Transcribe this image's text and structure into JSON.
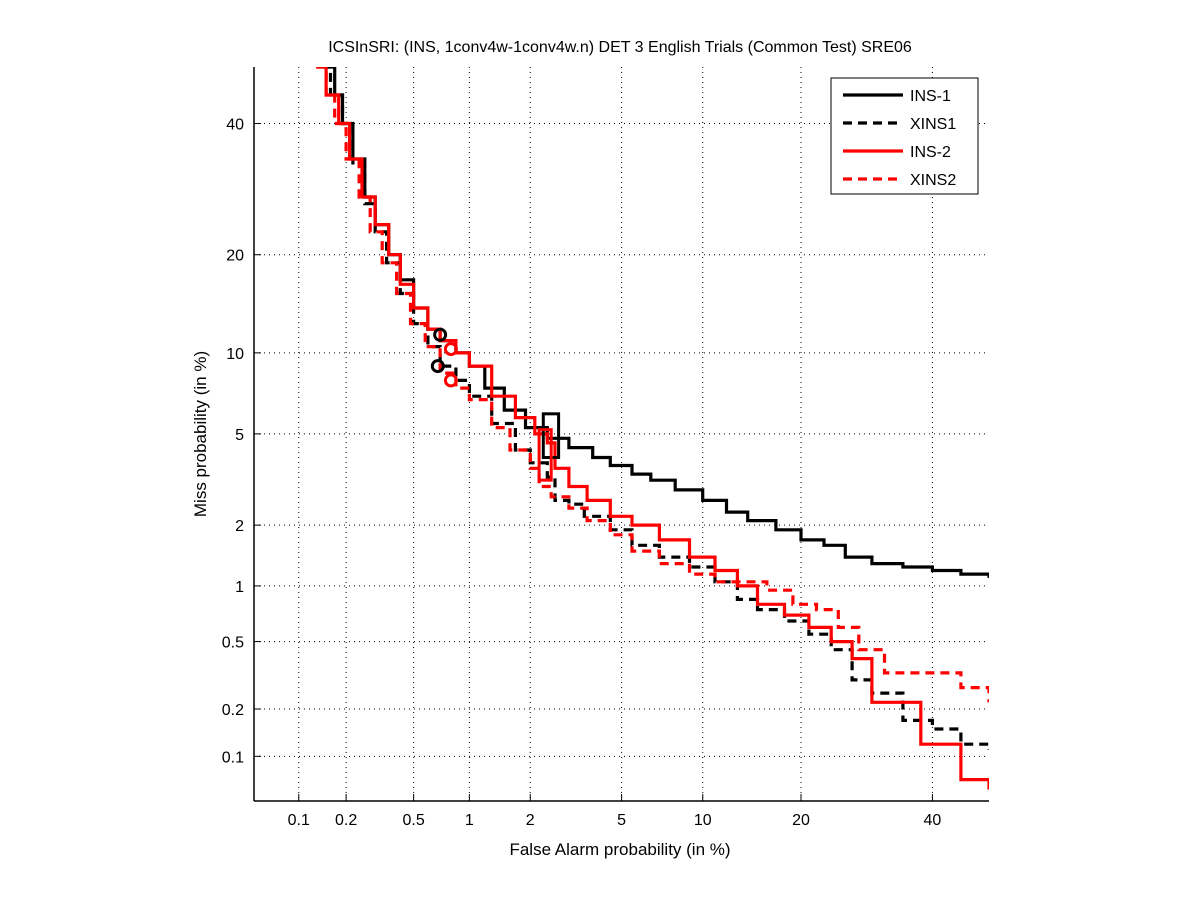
{
  "chart_data": {
    "type": "line",
    "scale": "normal-deviate (DET)",
    "title": "ICSInSRI: (INS, 1conv4w-1conv4w.n) DET 3 English Trials (Common Test) SRE06",
    "xlabel": "False Alarm probability (in %)",
    "ylabel": "Miss probability (in %)",
    "xlim": [
      0.05,
      50
    ],
    "ylim": [
      0.05,
      50
    ],
    "xticks": [
      0.1,
      0.2,
      0.5,
      1,
      2,
      5,
      10,
      20,
      40
    ],
    "xtick_labels": [
      "0.1",
      "0.2",
      "0.5",
      "1",
      "2",
      "5",
      "10",
      "20",
      "40"
    ],
    "yticks": [
      0.1,
      0.2,
      0.5,
      1,
      2,
      5,
      10,
      20,
      40
    ],
    "ytick_labels": [
      "0.1",
      "0.2",
      "0.5",
      "1",
      "2",
      "5",
      "10",
      "20",
      "40"
    ],
    "grid": true,
    "legend_position": "top-right",
    "series": [
      {
        "name": "INS-1",
        "color": "#000000",
        "dash": "solid",
        "x": [
          0.15,
          0.17,
          0.19,
          0.22,
          0.26,
          0.3,
          0.36,
          0.42,
          0.5,
          0.6,
          0.7,
          0.85,
          1.0,
          1.2,
          1.5,
          1.9,
          2.4,
          3.0,
          3.8,
          4.5,
          5.5,
          6.5,
          8.0,
          10.0,
          12.0,
          14.0,
          17.0,
          20.0,
          23.0,
          26.0,
          30.0,
          35.0,
          40.0,
          45.0,
          50.0
        ],
        "y": [
          50,
          45,
          40,
          34,
          28,
          24,
          20,
          17,
          14,
          12,
          11,
          10,
          9,
          7.5,
          6.2,
          5.3,
          4.8,
          4.4,
          4.0,
          3.7,
          3.4,
          3.2,
          2.9,
          2.6,
          2.3,
          2.1,
          1.9,
          1.7,
          1.6,
          1.4,
          1.3,
          1.25,
          1.2,
          1.15,
          1.1
        ]
      },
      {
        "name": "XINS1",
        "color": "#000000",
        "dash": "dashed",
        "x": [
          0.14,
          0.16,
          0.19,
          0.22,
          0.26,
          0.3,
          0.35,
          0.42,
          0.5,
          0.6,
          0.7,
          0.85,
          1.0,
          1.3,
          1.7,
          2.0,
          2.4,
          2.6,
          3.0,
          3.5,
          4.5,
          5.5,
          7.0,
          9.0,
          11.0,
          13.0,
          15.0,
          18.0,
          21.0,
          24.0,
          27.0,
          30.0,
          35.0,
          40.0,
          45.0,
          50.0
        ],
        "y": [
          50,
          45,
          40,
          33,
          27,
          23,
          19,
          15.5,
          12.5,
          10.5,
          9.0,
          8.0,
          7.0,
          5.5,
          4.3,
          3.8,
          3.3,
          2.6,
          2.5,
          2.2,
          1.9,
          1.6,
          1.4,
          1.25,
          1.05,
          0.85,
          0.75,
          0.65,
          0.55,
          0.45,
          0.3,
          0.25,
          0.17,
          0.15,
          0.12,
          0.11
        ]
      },
      {
        "name": "INS-2",
        "color": "#ff0000",
        "dash": "solid",
        "x": [
          0.13,
          0.15,
          0.18,
          0.21,
          0.25,
          0.3,
          0.36,
          0.42,
          0.5,
          0.6,
          0.7,
          0.85,
          1.0,
          1.3,
          1.7,
          2.1,
          2.4,
          2.6,
          3.0,
          3.6,
          4.5,
          5.5,
          7.0,
          9.0,
          11.0,
          13.0,
          15.0,
          18.0,
          21.0,
          24.0,
          27.0,
          30.0,
          38.0,
          45.0,
          50.0
        ],
        "y": [
          50,
          45,
          40,
          34,
          28,
          24,
          20,
          16.5,
          14,
          12,
          11,
          10,
          9,
          7.0,
          5.8,
          5.0,
          4.6,
          3.6,
          3.0,
          2.6,
          2.2,
          2.0,
          1.7,
          1.4,
          1.2,
          1.0,
          0.8,
          0.7,
          0.6,
          0.5,
          0.4,
          0.22,
          0.12,
          0.07,
          0.06
        ]
      },
      {
        "name": "XINS2",
        "color": "#ff0000",
        "dash": "dashed",
        "x": [
          0.13,
          0.15,
          0.17,
          0.2,
          0.24,
          0.28,
          0.33,
          0.4,
          0.48,
          0.58,
          0.7,
          0.85,
          1.0,
          1.3,
          1.6,
          2.0,
          2.2,
          2.5,
          3.0,
          3.6,
          4.5,
          5.5,
          7.0,
          9.0,
          11.0,
          13.0,
          16.0,
          19.0,
          22.0,
          25.0,
          28.0,
          32.0,
          38.0,
          45.0,
          50.0
        ],
        "y": [
          50,
          45,
          40,
          34,
          28,
          23,
          19,
          15.5,
          12.5,
          10.5,
          8.5,
          7.5,
          6.8,
          5.3,
          4.3,
          3.6,
          3.0,
          2.7,
          2.4,
          2.1,
          1.8,
          1.5,
          1.3,
          1.15,
          1.05,
          1.05,
          0.95,
          0.8,
          0.75,
          0.6,
          0.45,
          0.33,
          0.33,
          0.27,
          0.22
        ]
      }
    ],
    "markers": [
      {
        "series": "INS-1",
        "shape": "circle",
        "x": 0.7,
        "y": 11.5,
        "color": "#000000"
      },
      {
        "series": "XINS1",
        "shape": "circle",
        "x": 0.68,
        "y": 9.0,
        "color": "#000000"
      },
      {
        "series": "INS-2",
        "shape": "circle",
        "x": 0.8,
        "y": 10.3,
        "color": "#ff0000"
      },
      {
        "series": "XINS2",
        "shape": "circle",
        "x": 0.8,
        "y": 8.0,
        "color": "#ff0000"
      },
      {
        "series": "INS-1",
        "shape": "box",
        "x": [
          2.3,
          2.7
        ],
        "y": [
          4.0,
          6.0
        ],
        "color": "#000000"
      },
      {
        "series": "INS-2",
        "shape": "box",
        "x": [
          2.2,
          2.5
        ],
        "y": [
          3.2,
          5.2
        ],
        "color": "#ff0000"
      }
    ]
  }
}
